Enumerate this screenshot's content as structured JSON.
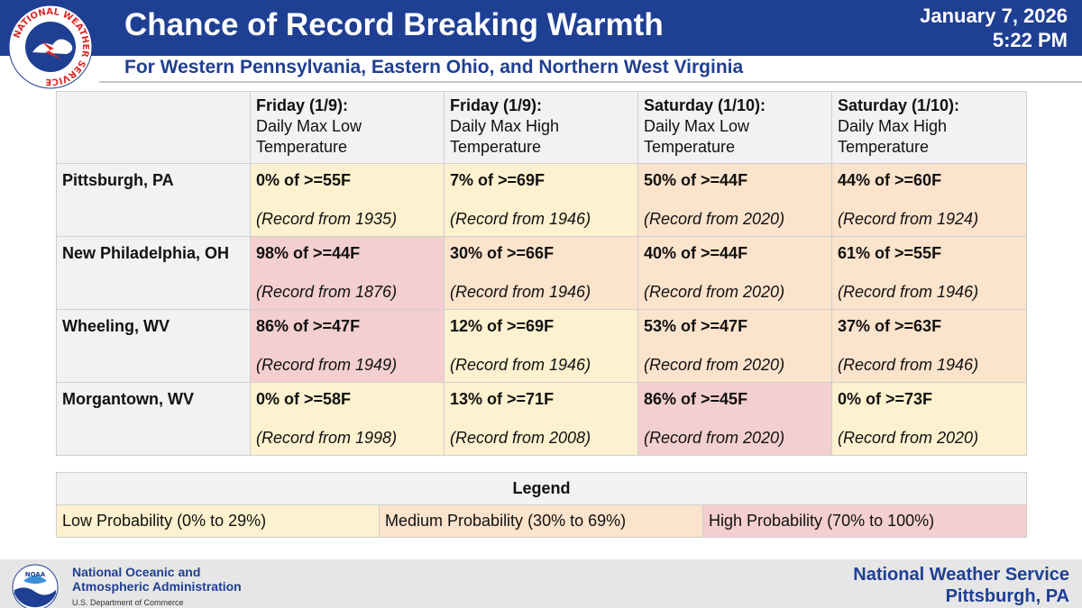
{
  "header": {
    "title": "Chance of Record Breaking Warmth",
    "date": "January 7, 2026",
    "time": "5:22 PM",
    "subtitle": "For Western Pennsylvania, Eastern Ohio, and Northern West Virginia",
    "logo_text": "NATIONAL WEATHER SERVICE",
    "colors": {
      "banner": "#1f3f93",
      "text": "#ffffff"
    }
  },
  "table": {
    "columns": [
      {
        "day": "Friday (1/9):",
        "desc": "Daily Max Low Temperature"
      },
      {
        "day": "Friday (1/9):",
        "desc": "Daily Max High Temperature"
      },
      {
        "day": "Saturday (1/10):",
        "desc": "Daily Max Low Temperature"
      },
      {
        "day": "Saturday (1/10):",
        "desc": "Daily Max High Temperature"
      }
    ],
    "rows": [
      {
        "city": "Pittsburgh, PA",
        "cells": [
          {
            "prob": "0% of >=55F",
            "record": "(Record from 1935)",
            "level": "low"
          },
          {
            "prob": "7% of >=69F",
            "record": "(Record from 1946)",
            "level": "low"
          },
          {
            "prob": "50% of >=44F",
            "record": "(Record from 2020)",
            "level": "medium"
          },
          {
            "prob": "44% of >=60F",
            "record": "(Record from 1924)",
            "level": "medium"
          }
        ]
      },
      {
        "city": "New Philadelphia, OH",
        "cells": [
          {
            "prob": "98% of >=44F",
            "record": "(Record from 1876)",
            "level": "high"
          },
          {
            "prob": "30% of >=66F",
            "record": "(Record from 1946)",
            "level": "medium"
          },
          {
            "prob": "40% of >=44F",
            "record": "(Record from 2020)",
            "level": "medium"
          },
          {
            "prob": "61% of >=55F",
            "record": "(Record from 1946)",
            "level": "medium"
          }
        ]
      },
      {
        "city": "Wheeling, WV",
        "cells": [
          {
            "prob": "86% of >=47F",
            "record": "(Record from 1949)",
            "level": "high"
          },
          {
            "prob": "12% of >=69F",
            "record": "(Record from 1946)",
            "level": "low"
          },
          {
            "prob": "53% of >=47F",
            "record": "(Record from 2020)",
            "level": "medium"
          },
          {
            "prob": "37% of >=63F",
            "record": "(Record from 1946)",
            "level": "medium"
          }
        ]
      },
      {
        "city": "Morgantown, WV",
        "cells": [
          {
            "prob": "0% of >=58F",
            "record": "(Record from 1998)",
            "level": "low"
          },
          {
            "prob": "13% of >=71F",
            "record": "(Record from 2008)",
            "level": "low"
          },
          {
            "prob": "86% of >=45F",
            "record": "(Record from 2020)",
            "level": "high"
          },
          {
            "prob": "0% of >=73F",
            "record": "(Record from 2020)",
            "level": "low"
          }
        ]
      }
    ]
  },
  "legend": {
    "title": "Legend",
    "low": "Low Probability (0% to 29%)",
    "medium": "Medium Probability (30% to 69%)",
    "high": "High Probability (70% to 100%)",
    "colors": {
      "low": "#fdf1cf",
      "medium": "#fbe3cc",
      "high": "#f4cfd0"
    }
  },
  "footer": {
    "noaa_line1": "National Oceanic and",
    "noaa_line2": "Atmospheric Administration",
    "noaa_dept": "U.S. Department of Commerce",
    "noaa_logo_text": "NOAA",
    "nws_line1": "National Weather Service",
    "nws_line2": "Pittsburgh, PA"
  }
}
